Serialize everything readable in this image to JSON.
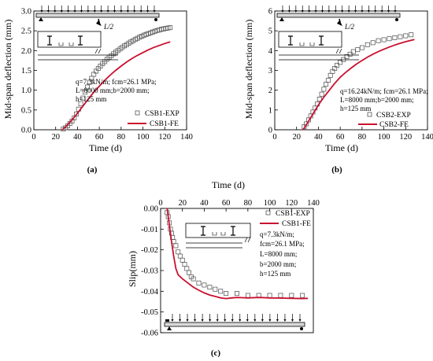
{
  "chart_data": [
    {
      "id": "a",
      "type": "scatter",
      "panel_label": "(a)",
      "xlabel": "Time (d)",
      "ylabel": "Mid-span deflection (mm)",
      "xlim": [
        0,
        140
      ],
      "ylim": [
        0,
        3.0
      ],
      "xticks": [
        0,
        20,
        40,
        60,
        80,
        100,
        120,
        140
      ],
      "yticks": [
        0.0,
        0.5,
        1.0,
        1.5,
        2.0,
        2.5,
        3.0
      ],
      "ytick_labels": [
        "0.0",
        "0.5",
        "1.0",
        "1.5",
        "2.0",
        "2.5",
        "3.0"
      ],
      "load_label": "L/2",
      "annotation": [
        "q=7.3kN/m; fcm=26.1 MPa;",
        "L=8000 mm;b=2000 mm;",
        "h=125 mm"
      ],
      "legend": [
        "CSB1-EXP",
        "CSB1-FE"
      ],
      "series": [
        {
          "name": "CSB1-EXP",
          "kind": "scatter",
          "x": [
            27,
            29,
            31,
            33,
            35,
            37,
            39,
            41,
            43,
            45,
            47,
            49,
            51,
            53,
            55,
            57,
            59,
            61,
            63,
            65,
            67,
            69,
            71,
            73,
            75,
            77,
            79,
            81,
            83,
            85,
            87,
            89,
            91,
            93,
            95,
            97,
            99,
            101,
            103,
            105,
            107,
            109,
            111,
            113,
            115,
            117,
            119,
            121,
            123,
            125
          ],
          "y": [
            0.02,
            0.05,
            0.1,
            0.16,
            0.22,
            0.3,
            0.4,
            0.52,
            0.66,
            0.8,
            0.95,
            1.08,
            1.2,
            1.3,
            1.4,
            1.48,
            1.55,
            1.61,
            1.67,
            1.72,
            1.78,
            1.83,
            1.87,
            1.92,
            1.96,
            2.0,
            2.04,
            2.08,
            2.12,
            2.15,
            2.19,
            2.22,
            2.25,
            2.28,
            2.31,
            2.34,
            2.36,
            2.39,
            2.41,
            2.43,
            2.45,
            2.47,
            2.49,
            2.51,
            2.52,
            2.54,
            2.55,
            2.56,
            2.57,
            2.58
          ]
        },
        {
          "name": "CSB1-FE",
          "kind": "line",
          "x": [
            26,
            30,
            35,
            40,
            45,
            50,
            55,
            60,
            65,
            70,
            75,
            80,
            85,
            90,
            95,
            100,
            105,
            110,
            115,
            120,
            125
          ],
          "y": [
            0.0,
            0.1,
            0.25,
            0.42,
            0.6,
            0.78,
            0.95,
            1.1,
            1.25,
            1.38,
            1.5,
            1.61,
            1.71,
            1.8,
            1.88,
            1.95,
            2.02,
            2.08,
            2.13,
            2.18,
            2.22
          ]
        }
      ]
    },
    {
      "id": "b",
      "type": "scatter",
      "panel_label": "(b)",
      "xlabel": "Time (d)",
      "ylabel": "Mid-span deflection (mm)",
      "xlim": [
        0,
        140
      ],
      "ylim": [
        0,
        6
      ],
      "xticks": [
        0,
        20,
        40,
        60,
        80,
        100,
        120,
        140
      ],
      "yticks": [
        0,
        1,
        2,
        3,
        4,
        5,
        6
      ],
      "ytick_labels": [
        "0",
        "1",
        "2",
        "3",
        "4",
        "5",
        "6"
      ],
      "load_label": "L/2",
      "annotation": [
        "q=16.24kN/m; fcm=26.1 MPa;",
        "L=8000 mm;b=2000 mm;",
        "h=125 mm"
      ],
      "legend": [
        "CSB2-EXP",
        "CSB2-FE"
      ],
      "series": [
        {
          "name": "CSB2-EXP",
          "kind": "scatter",
          "x": [
            27,
            29,
            31,
            33,
            35,
            37,
            39,
            41,
            43,
            45,
            47,
            49,
            51,
            53,
            55,
            57,
            60,
            63,
            66,
            69,
            72,
            76,
            80,
            85,
            90,
            95,
            100,
            105,
            110,
            115,
            120,
            125
          ],
          "y": [
            0.15,
            0.3,
            0.5,
            0.7,
            0.9,
            1.1,
            1.3,
            1.55,
            1.8,
            2.05,
            2.3,
            2.5,
            2.75,
            2.95,
            3.1,
            3.25,
            3.4,
            3.55,
            3.7,
            3.82,
            3.95,
            4.05,
            4.15,
            4.3,
            4.4,
            4.5,
            4.55,
            4.6,
            4.65,
            4.7,
            4.75,
            4.8
          ]
        },
        {
          "name": "CSB2-FE",
          "kind": "line",
          "x": [
            26,
            30,
            35,
            40,
            45,
            50,
            55,
            60,
            65,
            70,
            75,
            80,
            85,
            90,
            95,
            100,
            105,
            110,
            115,
            120,
            125,
            128
          ],
          "y": [
            0.0,
            0.35,
            0.8,
            1.25,
            1.65,
            2.0,
            2.35,
            2.65,
            2.9,
            3.12,
            3.32,
            3.5,
            3.67,
            3.82,
            3.95,
            4.07,
            4.18,
            4.28,
            4.37,
            4.45,
            4.52,
            4.56
          ]
        }
      ]
    },
    {
      "id": "c",
      "type": "scatter",
      "panel_label": "(c)",
      "xlabel": "Time (d)",
      "ylabel": "Slip(mm)",
      "xlim": [
        0,
        140
      ],
      "ylim": [
        -0.06,
        0.0
      ],
      "xticks": [
        0,
        20,
        40,
        60,
        80,
        100,
        120,
        140
      ],
      "yticks": [
        0.0,
        -0.01,
        -0.02,
        -0.03,
        -0.04,
        -0.05,
        -0.06
      ],
      "ytick_labels": [
        "0.00",
        "-0.01",
        "-0.02",
        "-0.03",
        "-0.04",
        "-0.05",
        "-0.06"
      ],
      "annotation": [
        "q=7.3kN/m;",
        "fcm=26.1 MPa;",
        "L=8000 mm;",
        "b=2000 mm;",
        "h=125 mm"
      ],
      "legend": [
        "CSB1-EXP",
        "CSB1-FE"
      ],
      "series": [
        {
          "name": "CSB1-EXP",
          "kind": "scatter",
          "x": [
            6,
            7,
            8,
            9,
            10,
            11,
            12,
            14,
            16,
            18,
            20,
            22,
            24,
            26,
            28,
            30,
            35,
            40,
            45,
            50,
            55,
            60,
            70,
            80,
            90,
            100,
            110,
            120,
            130
          ],
          "y": [
            -0.002,
            -0.004,
            -0.007,
            -0.01,
            -0.012,
            -0.014,
            -0.016,
            -0.018,
            -0.021,
            -0.023,
            -0.025,
            -0.027,
            -0.029,
            -0.031,
            -0.033,
            -0.034,
            -0.036,
            -0.037,
            -0.038,
            -0.039,
            -0.04,
            -0.041,
            -0.041,
            -0.042,
            -0.042,
            -0.042,
            -0.042,
            -0.042,
            -0.042
          ]
        },
        {
          "name": "CSB1-FE",
          "kind": "line",
          "x": [
            6,
            8,
            10,
            12,
            14,
            16,
            20,
            25,
            30,
            35,
            40,
            45,
            50,
            55,
            60,
            65,
            70,
            75,
            80,
            90,
            100,
            110,
            120,
            130,
            135
          ],
          "y": [
            0.0,
            -0.008,
            -0.016,
            -0.023,
            -0.029,
            -0.032,
            -0.034,
            -0.036,
            -0.038,
            -0.0395,
            -0.0408,
            -0.0418,
            -0.0425,
            -0.0432,
            -0.0435,
            -0.0432,
            -0.043,
            -0.0431,
            -0.0432,
            -0.043,
            -0.0432,
            -0.0433,
            -0.0434,
            -0.0435,
            -0.0434
          ]
        }
      ]
    }
  ],
  "colors": {
    "fe_line": "#c8102e",
    "exp_marker": "#555555",
    "axis": "#000000"
  }
}
